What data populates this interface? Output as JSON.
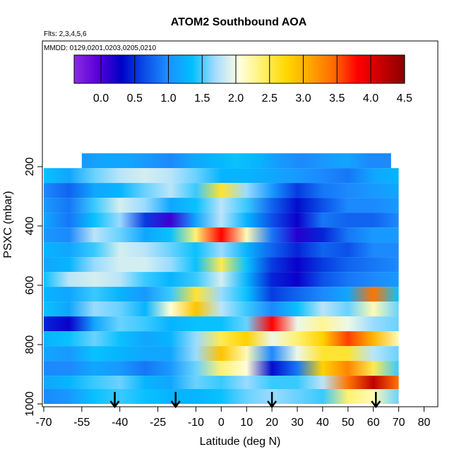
{
  "chart_data": {
    "type": "heatmap",
    "title": "ATOM2 Southbound AOA",
    "flights_note": "Flts: 2,3,4,5,6",
    "dates_note": "MMDD: 0129,0201,0203,0205,0210",
    "xlabel": "Latitude (deg N)",
    "ylabel": "PSXC (mbar)",
    "xlim": [
      -70,
      85
    ],
    "ylim": [
      1000,
      100
    ],
    "x_ticks": [
      -70,
      -55,
      -40,
      -25,
      -10,
      0,
      10,
      20,
      30,
      40,
      50,
      60,
      70,
      80
    ],
    "y_ticks": [
      200,
      400,
      600,
      800,
      1000
    ],
    "colorbar": {
      "min": -0.35,
      "max": 4.5,
      "ticks": [
        0.0,
        0.5,
        1.0,
        1.5,
        2.0,
        2.5,
        3.0,
        3.5,
        4.0,
        4.5
      ],
      "tick_labels": [
        "0.0",
        "0.5",
        "1.0",
        "1.5",
        "2.0",
        "2.5",
        "3.0",
        "3.5",
        "4.0",
        "4.5"
      ],
      "colors": [
        "#8a2be2",
        "#5a00d8",
        "#0000c8",
        "#0a4fe8",
        "#1e90ff",
        "#00bfff",
        "#a8ddff",
        "#ffffe0",
        "#fff06a",
        "#ffd700",
        "#ffa500",
        "#ff6a00",
        "#ff0000",
        "#c80000",
        "#8b0000"
      ]
    },
    "arrow_latitudes": [
      -42,
      -18,
      20,
      61
    ],
    "pressure_bands": [
      {
        "p": 180,
        "lat_start": -55,
        "lat_end": 67,
        "values": [
          1.1,
          1.2,
          1.2,
          1.1,
          1.0,
          1.2,
          1.3,
          1.4,
          1.3,
          1.1,
          1.0,
          1.1,
          1.2,
          1.0,
          1.0
        ]
      },
      {
        "p": 230,
        "lat_start": -70,
        "lat_end": 70,
        "values": [
          1.4,
          1.2,
          1.6,
          1.8,
          1.9,
          1.8,
          1.6,
          1.3,
          1.3,
          1.2,
          1.1,
          1.0,
          0.9,
          1.2,
          1.3
        ]
      },
      {
        "p": 280,
        "lat_start": -70,
        "lat_end": 70,
        "values": [
          1.0,
          0.8,
          1.2,
          1.3,
          1.6,
          1.8,
          1.5,
          2.6,
          1.7,
          1.1,
          0.6,
          0.9,
          1.0,
          1.1,
          1.2
        ]
      },
      {
        "p": 330,
        "lat_start": -70,
        "lat_end": 70,
        "values": [
          1.1,
          0.9,
          1.5,
          1.9,
          1.7,
          1.2,
          1.4,
          1.8,
          1.5,
          0.8,
          0.4,
          0.7,
          1.0,
          1.0,
          1.1
        ]
      },
      {
        "p": 380,
        "lat_start": -70,
        "lat_end": 70,
        "values": [
          1.2,
          0.9,
          1.4,
          1.7,
          0.6,
          0.1,
          1.2,
          1.8,
          1.3,
          0.7,
          0.3,
          0.9,
          0.8,
          0.8,
          1.0
        ]
      },
      {
        "p": 430,
        "lat_start": -70,
        "lat_end": 70,
        "values": [
          1.1,
          1.0,
          1.8,
          1.6,
          1.2,
          1.4,
          2.4,
          3.8,
          2.2,
          0.9,
          0.2,
          0.5,
          0.9,
          1.1,
          1.1
        ]
      },
      {
        "p": 480,
        "lat_start": -70,
        "lat_end": 70,
        "values": [
          1.3,
          1.2,
          1.5,
          1.9,
          1.8,
          1.6,
          1.4,
          1.7,
          1.3,
          0.8,
          0.5,
          0.8,
          0.7,
          1.0,
          1.0
        ]
      },
      {
        "p": 530,
        "lat_start": -70,
        "lat_end": 70,
        "values": [
          1.2,
          1.3,
          1.7,
          1.9,
          1.9,
          1.7,
          1.4,
          2.5,
          1.4,
          0.6,
          0.3,
          0.6,
          0.8,
          0.9,
          1.0
        ]
      },
      {
        "p": 580,
        "lat_start": -70,
        "lat_end": 70,
        "values": [
          1.4,
          1.8,
          1.9,
          1.8,
          1.5,
          1.3,
          1.5,
          1.9,
          1.3,
          0.5,
          0.3,
          0.7,
          0.9,
          1.0,
          1.1
        ]
      },
      {
        "p": 630,
        "lat_start": -70,
        "lat_end": 70,
        "values": [
          1.3,
          1.2,
          1.5,
          1.3,
          1.1,
          1.5,
          2.6,
          1.7,
          1.4,
          0.6,
          0.8,
          1.0,
          1.2,
          3.4,
          1.4
        ]
      },
      {
        "p": 680,
        "lat_start": -70,
        "lat_end": 70,
        "values": [
          1.4,
          1.2,
          1.7,
          1.6,
          1.3,
          2.1,
          2.9,
          1.8,
          1.5,
          1.0,
          1.4,
          1.8,
          1.6,
          2.2,
          1.6
        ]
      },
      {
        "p": 730,
        "lat_start": -70,
        "lat_end": 70,
        "values": [
          0.5,
          0.3,
          1.2,
          1.6,
          1.5,
          1.3,
          1.4,
          1.4,
          1.6,
          3.8,
          2.0,
          2.3,
          2.0,
          1.7,
          1.6
        ]
      },
      {
        "p": 780,
        "lat_start": -70,
        "lat_end": 70,
        "values": [
          1.3,
          1.4,
          1.6,
          1.4,
          1.2,
          1.3,
          1.7,
          2.5,
          2.8,
          2.0,
          2.4,
          2.8,
          3.6,
          3.0,
          2.2
        ]
      },
      {
        "p": 830,
        "lat_start": -70,
        "lat_end": 70,
        "values": [
          1.2,
          1.1,
          1.4,
          1.3,
          1.2,
          1.2,
          1.7,
          2.9,
          2.2,
          1.0,
          2.0,
          2.6,
          2.6,
          1.8,
          1.6
        ]
      },
      {
        "p": 880,
        "lat_start": -70,
        "lat_end": 70,
        "values": [
          1.0,
          1.0,
          1.2,
          1.1,
          0.9,
          1.1,
          1.6,
          2.4,
          2.1,
          0.4,
          0.9,
          2.8,
          3.3,
          2.5,
          1.5
        ]
      },
      {
        "p": 930,
        "lat_start": -70,
        "lat_end": 70,
        "values": [
          1.2,
          1.3,
          1.5,
          1.6,
          1.3,
          1.2,
          1.6,
          1.5,
          1.7,
          1.5,
          1.5,
          1.8,
          3.4,
          4.2,
          3.4
        ]
      },
      {
        "p": 975,
        "lat_start": -70,
        "lat_end": 70,
        "values": [
          1.0,
          1.1,
          1.4,
          1.5,
          1.4,
          1.3,
          1.3,
          1.4,
          1.6,
          1.7,
          1.6,
          1.5,
          2.4,
          2.2,
          1.6
        ]
      }
    ]
  }
}
